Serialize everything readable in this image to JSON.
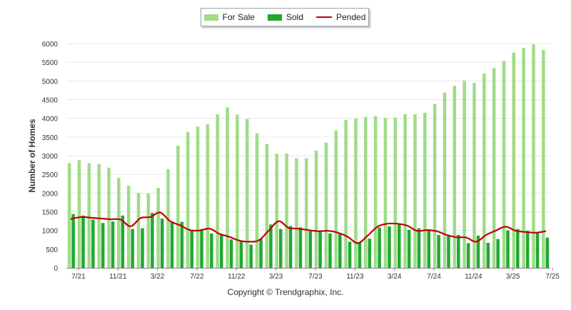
{
  "legend": {
    "for_sale": "For Sale",
    "sold": "Sold",
    "pended": "Pended"
  },
  "copyright": "Copyright © Trendgraphix, Inc.",
  "colors": {
    "for_sale": "#9fdc88",
    "sold": "#21a832",
    "pended": "#c00000",
    "grid": "#e6e6e6"
  },
  "chart_data": {
    "type": "bar",
    "ylabel": "Number of Homes",
    "ylim": [
      0,
      6000
    ],
    "yticks": [
      0,
      500,
      1000,
      1500,
      2000,
      2500,
      3000,
      3500,
      4000,
      4500,
      5000,
      5500,
      6000
    ],
    "grid": true,
    "legend_position": "top-center",
    "x_tick_labels": [
      "7/21",
      "11/21",
      "3/22",
      "7/22",
      "11/22",
      "3/23",
      "7/23",
      "11/23",
      "3/24",
      "7/24",
      "11/24",
      "3/25",
      "7/25"
    ],
    "categories": [
      "7/21",
      "8/21",
      "9/21",
      "10/21",
      "11/21",
      "12/21",
      "1/22",
      "2/22",
      "3/22",
      "4/22",
      "5/22",
      "6/22",
      "7/22",
      "8/22",
      "9/22",
      "10/22",
      "11/22",
      "12/22",
      "1/23",
      "2/23",
      "3/23",
      "4/23",
      "5/23",
      "6/23",
      "7/23",
      "8/23",
      "9/23",
      "10/23",
      "11/23",
      "12/23",
      "1/24",
      "2/24",
      "3/24",
      "4/24",
      "5/24",
      "6/24",
      "7/24",
      "8/24",
      "9/24",
      "10/24",
      "11/24",
      "12/24",
      "1/25",
      "2/25",
      "3/25",
      "4/25",
      "5/25",
      "6/25",
      "7/25"
    ],
    "series": [
      {
        "name": "For Sale",
        "kind": "bar",
        "values": [
          2800,
          2880,
          2800,
          2780,
          2680,
          2410,
          2200,
          2000,
          1990,
          2140,
          2640,
          3270,
          3640,
          3780,
          3840,
          4110,
          4290,
          4100,
          3980,
          3600,
          3310,
          3050,
          3060,
          2930,
          2930,
          3140,
          3350,
          3680,
          3960,
          3990,
          4040,
          4060,
          4010,
          4020,
          4110,
          4110,
          4150,
          4390,
          4690,
          4870,
          5010,
          4950,
          5200,
          5340,
          5540,
          5760,
          5880,
          5980,
          5830
        ]
      },
      {
        "name": "Sold",
        "kind": "bar",
        "values": [
          1440,
          1400,
          1290,
          1200,
          1240,
          1400,
          1040,
          1060,
          1470,
          1320,
          1240,
          1230,
          1000,
          1040,
          920,
          900,
          760,
          700,
          620,
          780,
          1160,
          1040,
          1120,
          1080,
          980,
          1000,
          920,
          930,
          700,
          680,
          780,
          1080,
          1110,
          1160,
          1020,
          1060,
          1000,
          880,
          850,
          880,
          660,
          860,
          670,
          770,
          1000,
          1040,
          990,
          930,
          810
        ]
      },
      {
        "name": "Pended",
        "kind": "line",
        "values": [
          1310,
          1360,
          1340,
          1320,
          1300,
          1290,
          1110,
          1330,
          1360,
          1480,
          1250,
          1140,
          1010,
          1000,
          1050,
          910,
          830,
          730,
          700,
          740,
          1000,
          1250,
          1070,
          1050,
          1010,
          980,
          990,
          940,
          830,
          660,
          860,
          1100,
          1180,
          1180,
          1130,
          990,
          1010,
          980,
          880,
          820,
          810,
          700,
          880,
          1000,
          1100,
          990,
          960,
          940,
          980
        ]
      }
    ]
  }
}
